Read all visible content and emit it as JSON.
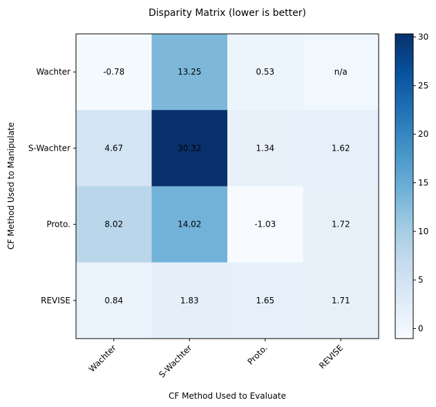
{
  "chart_data": {
    "type": "heatmap",
    "title": "Disparity Matrix (lower is better)",
    "xlabel": "CF Method Used to Evaluate",
    "ylabel": "CF Method Used to Manipulate",
    "x_categories": [
      "Wachter",
      "S-Wachter",
      "Proto.",
      "REVISE"
    ],
    "y_categories": [
      "Wachter",
      "S-Wachter",
      "Proto.",
      "REVISE"
    ],
    "values": [
      [
        -0.78,
        13.25,
        0.53,
        null
      ],
      [
        4.67,
        30.32,
        1.34,
        1.62
      ],
      [
        8.02,
        14.02,
        -1.03,
        1.72
      ],
      [
        0.84,
        1.83,
        1.65,
        1.71
      ]
    ],
    "cell_labels": [
      [
        "-0.78",
        "13.25",
        "0.53",
        "n/a"
      ],
      [
        "4.67",
        "30.32",
        "1.34",
        "1.62"
      ],
      [
        "8.02",
        "14.02",
        "-1.03",
        "1.72"
      ],
      [
        "0.84",
        "1.83",
        "1.65",
        "1.71"
      ]
    ],
    "colorbar": {
      "colormap": "Blues",
      "range": [
        -1.03,
        30.32
      ],
      "ticks": [
        0,
        5,
        10,
        15,
        20,
        25,
        30
      ]
    },
    "missing_value_color_value": 0
  }
}
